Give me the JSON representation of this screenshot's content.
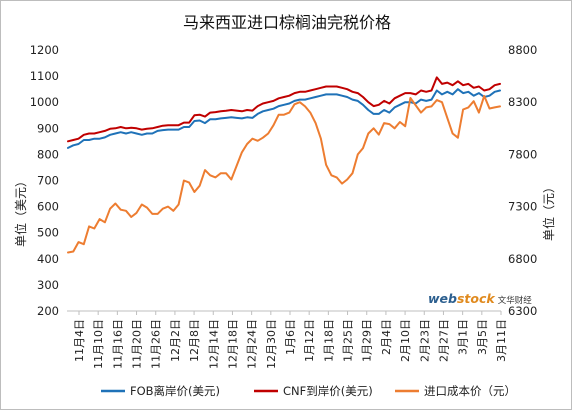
{
  "chart_data": {
    "type": "line",
    "title": "马来西亚进口棕榈油完税价格",
    "ylabel_left": "单位（美元）",
    "ylabel_right": "单位（元）",
    "ylim_left": [
      200,
      1200
    ],
    "yticks_left": [
      200,
      300,
      400,
      500,
      600,
      700,
      800,
      900,
      1000,
      1100,
      1200
    ],
    "ylim_right": [
      6300,
      8800
    ],
    "yticks_right": [
      6300,
      6800,
      7300,
      7800,
      8300,
      8800
    ],
    "x_tick_labels": [
      "11月4日",
      "11月10日",
      "11月16日",
      "11月20日",
      "11月26日",
      "12月2日",
      "12月8日",
      "12月14日",
      "12月18日",
      "12月24日",
      "12月30日",
      "1月6日",
      "1月12日",
      "1月18日",
      "1月25日",
      "1月29日",
      "2月4日",
      "2月10日",
      "2月23日",
      "2月27日",
      "3月1日",
      "3月5日",
      "3月11日"
    ],
    "grid": false,
    "legend_position": "bottom",
    "colors": {
      "fob": "#1f72b8",
      "cnf": "#c00000",
      "cost": "#ed7d31"
    },
    "series": [
      {
        "name": "FOB离岸价(美元)",
        "axis": "left",
        "color": "#1f72b8",
        "values": [
          825,
          835,
          840,
          855,
          855,
          860,
          860,
          865,
          875,
          880,
          885,
          880,
          885,
          880,
          875,
          880,
          880,
          890,
          893,
          895,
          895,
          895,
          905,
          905,
          928,
          930,
          920,
          935,
          935,
          938,
          940,
          942,
          940,
          938,
          942,
          940,
          955,
          965,
          970,
          975,
          985,
          990,
          995,
          1005,
          1010,
          1010,
          1015,
          1020,
          1025,
          1030,
          1030,
          1030,
          1025,
          1020,
          1010,
          1005,
          990,
          970,
          955,
          955,
          970,
          960,
          980,
          990,
          1000,
          1000,
          995,
          1010,
          1005,
          1010,
          1045,
          1030,
          1040,
          1030,
          1050,
          1035,
          1040,
          1025,
          1035,
          1020,
          1025,
          1040,
          1045
        ]
      },
      {
        "name": "CNF到岸价(美元)",
        "axis": "left",
        "color": "#c00000",
        "values": [
          850,
          855,
          860,
          875,
          880,
          880,
          885,
          890,
          898,
          900,
          905,
          900,
          902,
          900,
          895,
          898,
          900,
          905,
          910,
          912,
          912,
          912,
          922,
          922,
          950,
          952,
          945,
          960,
          962,
          965,
          967,
          970,
          968,
          965,
          970,
          968,
          985,
          995,
          1000,
          1005,
          1015,
          1020,
          1025,
          1035,
          1040,
          1040,
          1045,
          1050,
          1055,
          1060,
          1060,
          1060,
          1055,
          1050,
          1040,
          1035,
          1020,
          1000,
          985,
          990,
          1005,
          995,
          1015,
          1025,
          1035,
          1035,
          1030,
          1045,
          1040,
          1045,
          1095,
          1070,
          1075,
          1065,
          1080,
          1065,
          1070,
          1055,
          1060,
          1045,
          1050,
          1065,
          1070
        ]
      },
      {
        "name": "进口成本价（元）",
        "axis": "right",
        "color": "#ed7d31",
        "values": [
          6860,
          6870,
          6960,
          6940,
          7110,
          7090,
          7180,
          7150,
          7280,
          7330,
          7270,
          7260,
          7200,
          7240,
          7320,
          7290,
          7230,
          7230,
          7280,
          7300,
          7260,
          7320,
          7550,
          7530,
          7440,
          7500,
          7650,
          7600,
          7580,
          7620,
          7620,
          7560,
          7690,
          7820,
          7900,
          7950,
          7930,
          7960,
          8000,
          8080,
          8180,
          8180,
          8200,
          8280,
          8300,
          8260,
          8200,
          8100,
          7950,
          7700,
          7600,
          7580,
          7520,
          7560,
          7620,
          7800,
          7860,
          8000,
          8050,
          7990,
          8100,
          8090,
          8050,
          8110,
          8070,
          8340,
          8270,
          8200,
          8250,
          8260,
          8320,
          8300,
          8150,
          8000,
          7960,
          8230,
          8250,
          8310,
          8200,
          8360,
          8240,
          8250,
          8260
        ]
      }
    ]
  },
  "legend": [
    {
      "label": "FOB离岸价(美元)",
      "color": "#1f72b8"
    },
    {
      "label": "CNF到岸价(美元)",
      "color": "#c00000"
    },
    {
      "label": "进口成本价（元）",
      "color": "#ed7d31"
    }
  ],
  "watermark": {
    "part_a": "web",
    "part_b": "stock",
    "part_c": "文华财经"
  }
}
